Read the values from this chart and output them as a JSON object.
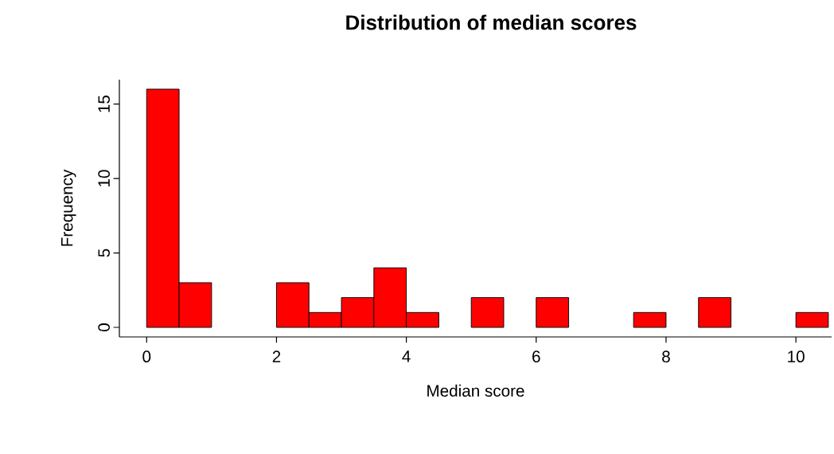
{
  "chart_data": {
    "type": "histogram",
    "title": "Distribution of median scores",
    "xlabel": "Median score",
    "ylabel": "Frequency",
    "bins": [
      0,
      0.5,
      1,
      1.5,
      2,
      2.5,
      3,
      3.5,
      4,
      4.5,
      5,
      5.5,
      6,
      6.5,
      7,
      7.5,
      8,
      8.5,
      9,
      9.5,
      10,
      10.5
    ],
    "values": [
      16,
      3,
      0,
      0,
      3,
      1,
      2,
      4,
      1,
      0,
      2,
      0,
      2,
      0,
      0,
      1,
      0,
      2,
      0,
      0,
      1
    ],
    "color": "#ff0000",
    "xlim": [
      -0.42,
      10.55
    ],
    "ylim": [
      -0.64,
      16.64
    ],
    "xticks": [
      0,
      2,
      4,
      6,
      8,
      10
    ],
    "yticks": [
      0,
      5,
      10,
      15
    ],
    "grid": false
  }
}
